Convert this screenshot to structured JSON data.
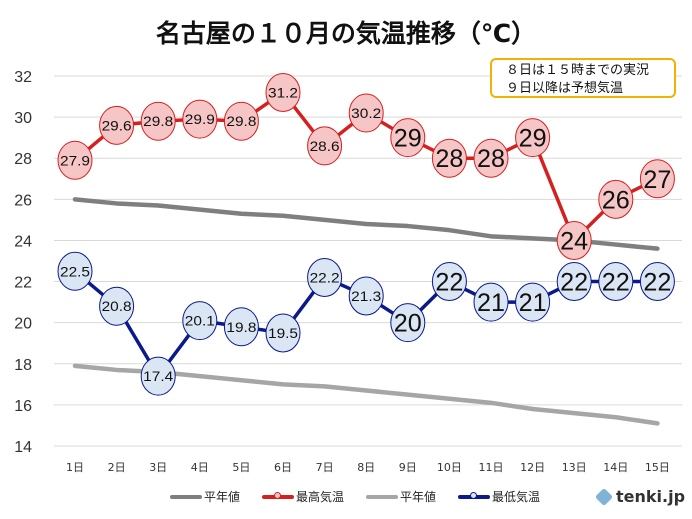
{
  "chart_data": {
    "type": "line",
    "title": "名古屋の１０月の気温推移（℃）",
    "annotation": [
      "８日は１５時までの実況",
      "９日以降は予想気温"
    ],
    "categories": [
      "1日",
      "2日",
      "3日",
      "4日",
      "5日",
      "6日",
      "7日",
      "8日",
      "9日",
      "10日",
      "11日",
      "12日",
      "13日",
      "14日",
      "15日"
    ],
    "ylim": [
      14,
      32
    ],
    "yticks": [
      14,
      16,
      18,
      20,
      22,
      24,
      26,
      28,
      30,
      32
    ],
    "grid": true,
    "legend_position": "bottom",
    "series": [
      {
        "name": "平年値",
        "color": "#7f7f7f",
        "markers": false,
        "values": [
          26.0,
          25.8,
          25.7,
          25.5,
          25.3,
          25.2,
          25.0,
          24.8,
          24.7,
          24.5,
          24.2,
          24.1,
          24.0,
          23.8,
          23.6
        ]
      },
      {
        "name": "最高気温",
        "color": "#d62020",
        "fill": "#f6c6c6",
        "markers": true,
        "labels": [
          "27.9",
          "29.6",
          "29.8",
          "29.9",
          "29.8",
          "31.2",
          "28.6",
          "30.2",
          "29",
          "28",
          "28",
          "29",
          "24",
          "26",
          "27"
        ],
        "values": [
          27.9,
          29.6,
          29.8,
          29.9,
          29.8,
          31.2,
          28.6,
          30.2,
          29,
          28,
          28,
          29,
          24,
          26,
          27
        ]
      },
      {
        "name": "平年値",
        "color": "#a6a6a6",
        "markers": false,
        "values": [
          17.9,
          17.7,
          17.6,
          17.4,
          17.2,
          17.0,
          16.9,
          16.7,
          16.5,
          16.3,
          16.1,
          15.8,
          15.6,
          15.4,
          15.1
        ]
      },
      {
        "name": "最低気温",
        "color": "#0a1a8c",
        "fill": "#dbe6f5",
        "markers": true,
        "labels": [
          "22.5",
          "20.8",
          "17.4",
          "20.1",
          "19.8",
          "19.5",
          "22.2",
          "21.3",
          "20",
          "22",
          "21",
          "21",
          "22",
          "22",
          "22"
        ],
        "values": [
          22.5,
          20.8,
          17.4,
          20.1,
          19.8,
          19.5,
          22.2,
          21.3,
          20,
          22,
          21,
          21,
          22,
          22,
          22
        ]
      }
    ]
  },
  "logo": "tenki.jp"
}
